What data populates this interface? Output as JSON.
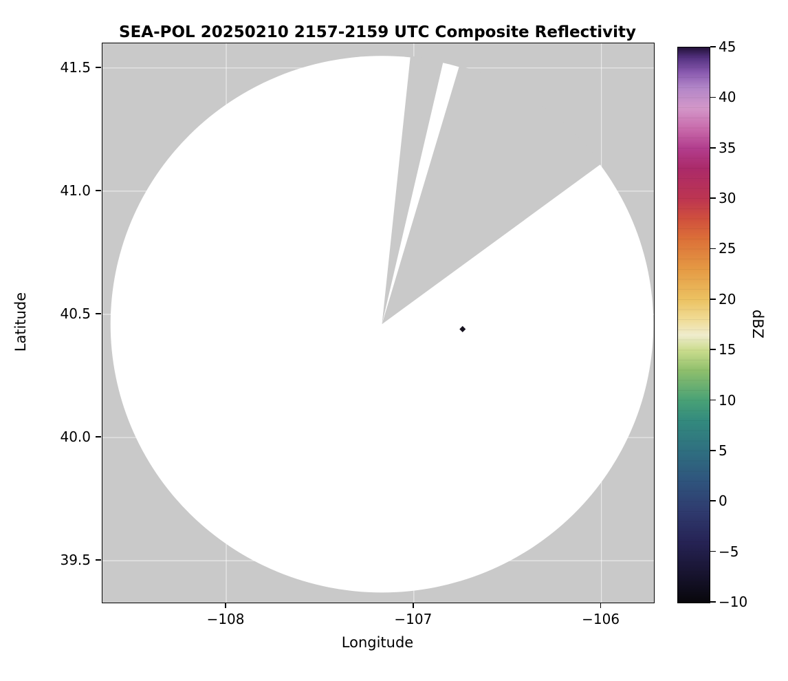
{
  "chart_data": {
    "type": "heatmap",
    "subtype": "radar_composite_reflectivity_map",
    "title": "SEA-POL 20250210 2157-2159 UTC Composite Reflectivity",
    "xlabel": "Longitude",
    "ylabel": "Latitude",
    "xlim": [
      -108.66,
      -105.72
    ],
    "ylim": [
      39.33,
      41.6
    ],
    "xticks": [
      -108,
      -107,
      -106
    ],
    "xtick_labels": [
      "−108",
      "−107",
      "−106"
    ],
    "yticks": [
      41.5,
      41.0,
      40.5,
      40.0,
      39.5
    ],
    "ytick_labels": [
      "41.5",
      "41.0",
      "40.5",
      "40.0",
      "39.5"
    ],
    "grid": true,
    "grid_color": "rgba(255,255,255,0.6)",
    "panel_bg": "#c9c9c9",
    "radar_coverage": {
      "center_lon": -107.17,
      "center_lat": 40.46,
      "radius_lon_deg": 1.447,
      "radius_lat_deg": 1.089,
      "fill": "#ffffff",
      "blocked_sector_azimuths_deg": [
        [
          6,
          13
        ],
        [
          16.5,
          53.5
        ]
      ],
      "note": "white disc = scanned radar coverage (no echo); gray wedges = blocked/no-data sectors"
    },
    "echoes": [
      {
        "lon": -106.74,
        "lat": 40.44,
        "color": "#16121e"
      }
    ],
    "colorbar": {
      "label": "dBZ",
      "min": -10,
      "max": 45,
      "ticks": [
        45,
        40,
        35,
        30,
        25,
        20,
        15,
        10,
        5,
        0,
        -5,
        -10
      ],
      "tick_labels": [
        "45",
        "40",
        "35",
        "30",
        "25",
        "20",
        "15",
        "10",
        "5",
        "0",
        "−5",
        "−10"
      ],
      "stops": [
        {
          "value": -10,
          "color": "#08070b"
        },
        {
          "value": -7,
          "color": "#181431"
        },
        {
          "value": -4,
          "color": "#262355"
        },
        {
          "value": -1,
          "color": "#2f3a6e"
        },
        {
          "value": 2,
          "color": "#2f547d"
        },
        {
          "value": 5,
          "color": "#2f6f80"
        },
        {
          "value": 8,
          "color": "#338a7e"
        },
        {
          "value": 10,
          "color": "#48a176"
        },
        {
          "value": 13,
          "color": "#8fbf6c"
        },
        {
          "value": 15,
          "color": "#cbdc8d"
        },
        {
          "value": 16.5,
          "color": "#efeccd"
        },
        {
          "value": 18,
          "color": "#f0dc97"
        },
        {
          "value": 20,
          "color": "#ecc262"
        },
        {
          "value": 23,
          "color": "#e59a44"
        },
        {
          "value": 26,
          "color": "#dc7038"
        },
        {
          "value": 28,
          "color": "#d0503d"
        },
        {
          "value": 30,
          "color": "#bd3551"
        },
        {
          "value": 33,
          "color": "#ab2a69"
        },
        {
          "value": 35,
          "color": "#b23d8d"
        },
        {
          "value": 37,
          "color": "#c96cac"
        },
        {
          "value": 39,
          "color": "#d397c9"
        },
        {
          "value": 41,
          "color": "#b286c8"
        },
        {
          "value": 42.5,
          "color": "#8a5ab0"
        },
        {
          "value": 44,
          "color": "#53317f"
        },
        {
          "value": 45,
          "color": "#221138"
        }
      ]
    }
  }
}
